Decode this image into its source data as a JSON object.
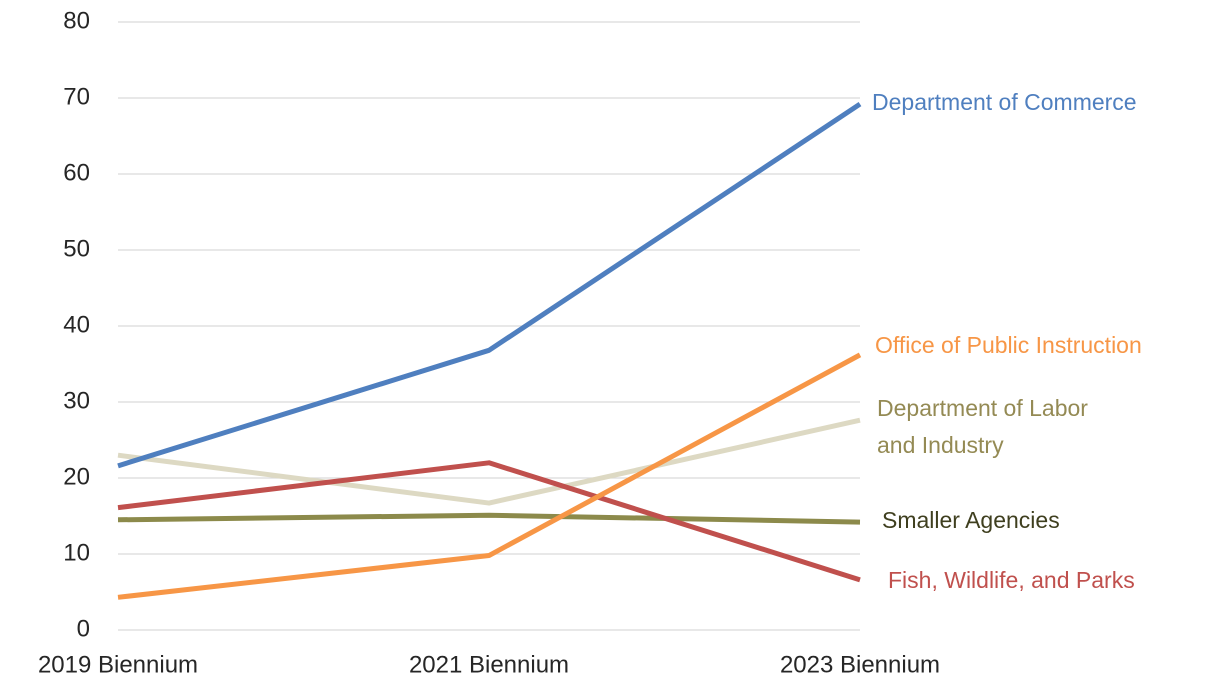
{
  "chart_data": {
    "type": "line",
    "categories": [
      "2019 Biennium",
      "2021 Biennium",
      "2023 Biennium"
    ],
    "series": [
      {
        "name": "Department of Commerce",
        "color": "#4f7fbf",
        "label_color": "#4f7fbf",
        "values": [
          21.6,
          36.8,
          69.2
        ]
      },
      {
        "name": "Office of Public Instruction",
        "color": "#f79646",
        "label_color": "#f79646",
        "values": [
          4.3,
          9.8,
          36.2
        ]
      },
      {
        "name": "Department of Labor and Industry",
        "color": "#ddd9c3",
        "label_color": "#948a54",
        "values": [
          23.0,
          16.7,
          27.6
        ]
      },
      {
        "name": "Smaller Agencies",
        "color": "#8c8a4b",
        "label_color": "#3f3f1f",
        "values": [
          14.5,
          15.1,
          14.2
        ]
      },
      {
        "name": "Fish, Wildlife, and Parks",
        "color": "#c0504d",
        "label_color": "#c0504d",
        "values": [
          16.1,
          22.0,
          6.6
        ]
      }
    ],
    "ylim": [
      0,
      80
    ],
    "yticks": [
      0,
      10,
      20,
      30,
      40,
      50,
      60,
      70,
      80
    ],
    "grid": true
  }
}
